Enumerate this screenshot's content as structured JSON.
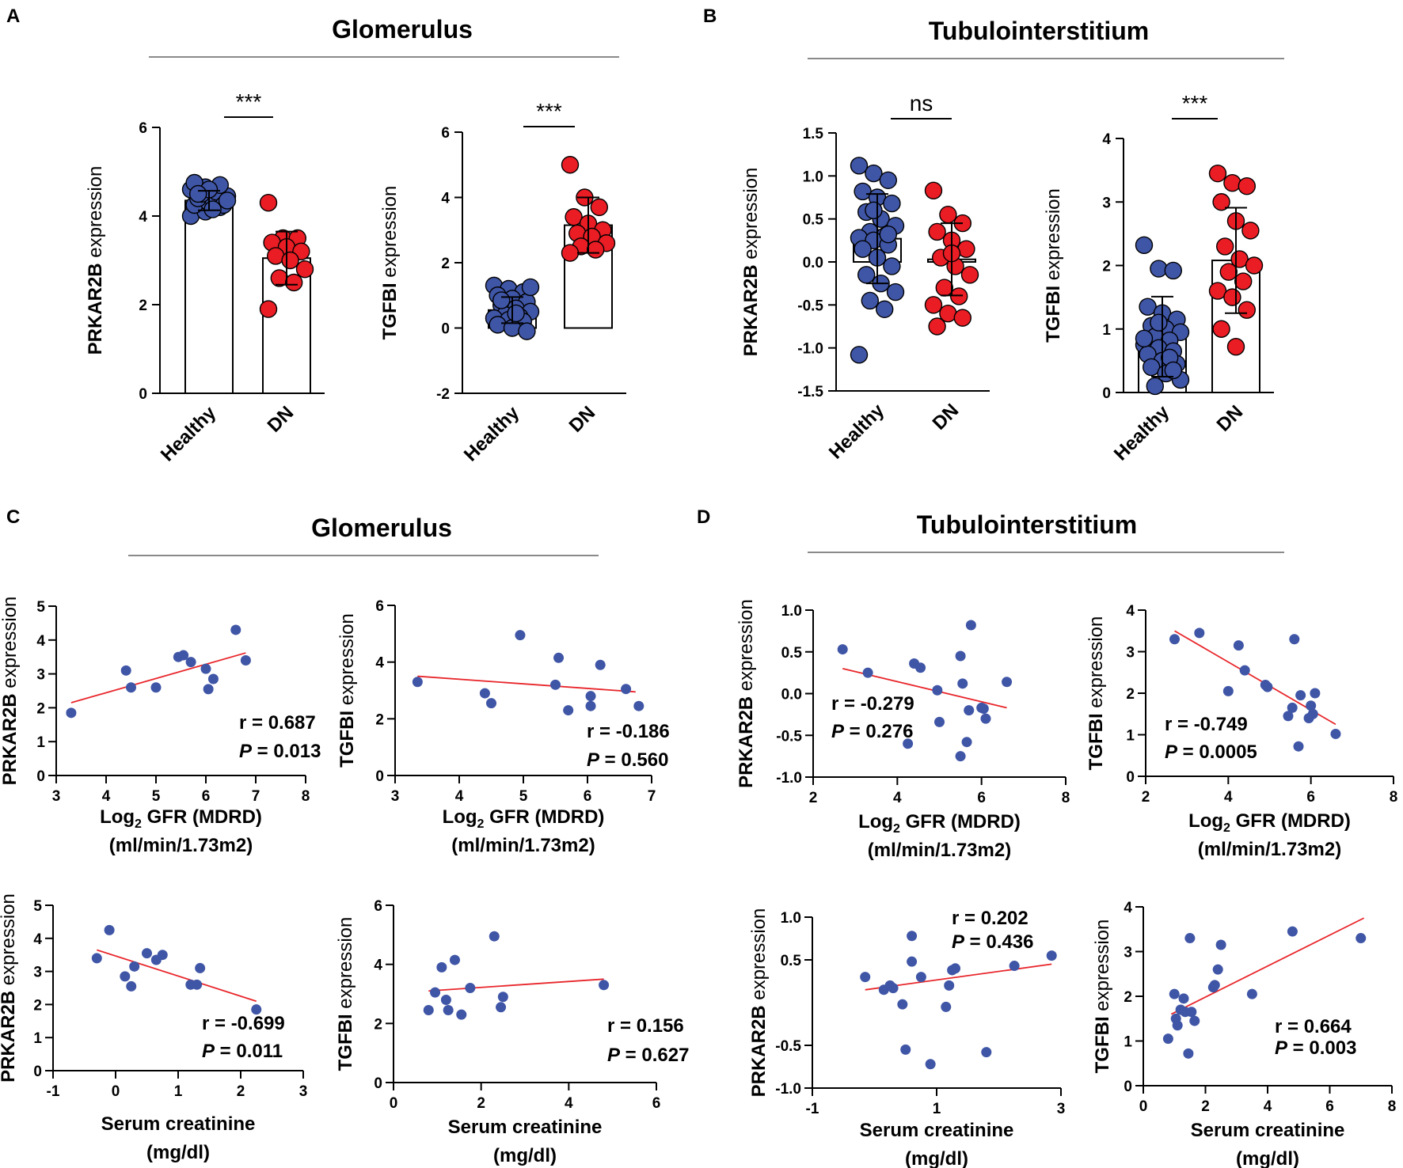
{
  "colors": {
    "healthy": "#3f55a6",
    "dn": "#ea1c24",
    "scatter": "#3f55a6",
    "regression": "#e8262b"
  },
  "sections": [
    {
      "letter": "A",
      "title": "Glomerulus"
    },
    {
      "letter": "B",
      "title": "Tubulointerstitium"
    },
    {
      "letter": "C",
      "title": "Glomerulus"
    },
    {
      "letter": "D",
      "title": "Tubulointerstitium"
    }
  ],
  "chart_data": [
    {
      "id": "A1",
      "type": "bar",
      "section": "A",
      "gene": "PRKAR2B",
      "ylabel_suffix": " expression",
      "categories": [
        "Healthy",
        "DN"
      ],
      "yticks": [
        0,
        2,
        4,
        6
      ],
      "ylim": [
        0,
        6
      ],
      "bars": [
        {
          "mean": 4.35,
          "sd": 0.22
        },
        {
          "mean": 3.05,
          "sd": 0.6
        }
      ],
      "significance": "***",
      "points": [
        [
          4.0,
          4.1,
          4.2,
          4.25,
          4.3,
          4.35,
          4.4,
          4.4,
          4.45,
          4.5,
          4.55,
          4.6,
          4.65,
          4.7,
          4.75,
          4.6,
          4.25,
          4.5,
          4.15,
          4.35
        ],
        [
          4.3,
          3.5,
          3.5,
          3.4,
          3.3,
          3.2,
          3.1,
          3.0,
          2.8,
          2.6,
          2.5,
          1.9
        ]
      ]
    },
    {
      "id": "A2",
      "type": "bar",
      "section": "A",
      "gene": "TGFBI",
      "ylabel_suffix": " expression",
      "categories": [
        "Healthy",
        "DN"
      ],
      "yticks": [
        -2,
        0,
        2,
        4,
        6
      ],
      "ylim": [
        -2,
        6
      ],
      "bars": [
        {
          "mean": 0.55,
          "sd": 0.4
        },
        {
          "mean": 3.15,
          "sd": 0.85
        }
      ],
      "significance": "***",
      "points": [
        [
          1.3,
          1.2,
          1.1,
          1.0,
          0.9,
          0.8,
          0.7,
          0.6,
          0.5,
          0.4,
          0.35,
          0.3,
          0.25,
          0.2,
          0.1,
          0.0,
          -0.1,
          0.85,
          0.45,
          1.25
        ],
        [
          5.0,
          4.0,
          3.7,
          3.4,
          3.2,
          3.0,
          2.9,
          2.8,
          2.6,
          2.5,
          2.4,
          2.3
        ]
      ]
    },
    {
      "id": "B1",
      "type": "bar",
      "section": "B",
      "gene": "PRKAR2B",
      "ylabel_suffix": " expression",
      "categories": [
        "Healthy",
        "DN"
      ],
      "yticks": [
        -1.5,
        -1.0,
        -0.5,
        0.0,
        0.5,
        1.0,
        1.5
      ],
      "ytick_labels": [
        "-1.5",
        "-1.0",
        "-0.5",
        "0.0",
        "0.5",
        "1.0",
        "1.5"
      ],
      "ylim": [
        -1.5,
        1.5
      ],
      "bars": [
        {
          "mean": 0.27,
          "sd": 0.52
        },
        {
          "mean": 0.03,
          "sd": 0.42
        }
      ],
      "significance": "ns",
      "points": [
        [
          1.12,
          1.03,
          0.95,
          0.82,
          0.75,
          0.68,
          0.58,
          0.5,
          0.42,
          0.35,
          0.3,
          0.28,
          0.25,
          0.2,
          0.15,
          0.05,
          -0.05,
          -0.15,
          -0.25,
          -0.35,
          -0.45,
          -0.55,
          -1.08,
          0.6,
          0.32
        ],
        [
          0.83,
          0.55,
          0.45,
          0.35,
          0.25,
          0.15,
          0.05,
          -0.05,
          -0.15,
          -0.3,
          -0.4,
          -0.5,
          -0.6,
          -0.65,
          -0.75,
          0.1
        ]
      ]
    },
    {
      "id": "B2",
      "type": "bar",
      "section": "B",
      "gene": "TGFBI",
      "ylabel_suffix": " expression",
      "categories": [
        "Healthy",
        "DN"
      ],
      "yticks": [
        0,
        1,
        2,
        3,
        4
      ],
      "ylim": [
        0,
        4
      ],
      "bars": [
        {
          "mean": 0.88,
          "sd": 0.63
        },
        {
          "mean": 2.08,
          "sd": 0.83
        }
      ],
      "significance": "***",
      "points": [
        [
          2.32,
          1.95,
          1.92,
          1.35,
          1.25,
          1.15,
          1.05,
          1.0,
          0.95,
          0.88,
          0.82,
          0.75,
          0.7,
          0.65,
          0.6,
          0.5,
          0.45,
          0.4,
          0.3,
          0.2,
          0.1,
          0.55,
          0.85,
          1.1,
          0.35
        ],
        [
          3.45,
          3.3,
          3.25,
          3.0,
          2.7,
          2.55,
          2.3,
          2.1,
          2.0,
          1.9,
          1.75,
          1.6,
          1.5,
          1.3,
          1.0,
          0.72
        ]
      ]
    },
    {
      "id": "C1",
      "type": "scatter",
      "section": "C",
      "gene": "PRKAR2B",
      "ylabel_suffix": " expression",
      "xlabel_pre": "Log",
      "xlabel_sub": "2",
      "xlabel_post": " GFR (MDRD)",
      "xlabel2": "(ml/min/1.73m2)",
      "xticks": [
        3,
        4,
        5,
        6,
        7,
        8
      ],
      "xlim": [
        3,
        8
      ],
      "yticks": [
        0,
        1,
        2,
        3,
        4,
        5
      ],
      "ylim": [
        0,
        5
      ],
      "x": [
        3.3,
        4.4,
        4.5,
        5.0,
        5.45,
        5.55,
        5.7,
        6.0,
        6.05,
        6.15,
        6.6,
        6.8
      ],
      "y": [
        1.85,
        3.1,
        2.6,
        2.6,
        3.5,
        3.55,
        3.35,
        3.15,
        2.55,
        2.85,
        4.3,
        3.4
      ],
      "fit": {
        "x": [
          3.3,
          6.8
        ],
        "y": [
          2.15,
          3.62
        ]
      },
      "r_text": "r = 0.687",
      "p_prefix": "P",
      "p_value": " = 0.013"
    },
    {
      "id": "C2",
      "type": "scatter",
      "section": "C",
      "gene": "TGFBI",
      "ylabel_suffix": " expression",
      "xlabel_pre": "Log",
      "xlabel_sub": "2",
      "xlabel_post": " GFR (MDRD)",
      "xlabel2": "(ml/min/1.73m2)",
      "xticks": [
        3,
        4,
        5,
        6,
        7
      ],
      "xlim": [
        3,
        7
      ],
      "yticks": [
        0,
        2,
        4,
        6
      ],
      "ylim": [
        0,
        6
      ],
      "x": [
        3.35,
        4.4,
        4.5,
        4.95,
        5.5,
        5.55,
        5.7,
        6.05,
        6.05,
        6.2,
        6.6,
        6.8
      ],
      "y": [
        3.3,
        2.9,
        2.55,
        4.95,
        3.2,
        4.15,
        2.3,
        2.45,
        2.8,
        3.9,
        3.05,
        2.45
      ],
      "fit": {
        "x": [
          3.35,
          6.75
        ],
        "y": [
          3.5,
          2.95
        ]
      },
      "r_text": "r = -0.186",
      "p_prefix": "P",
      "p_value": " = 0.560"
    },
    {
      "id": "C3",
      "type": "scatter",
      "section": "C",
      "gene": "PRKAR2B",
      "ylabel_suffix": " expression",
      "xlabel_pre": "Serum creatinine",
      "xlabel_sub": "",
      "xlabel_post": "",
      "xlabel2": "(mg/dl)",
      "xticks": [
        -1,
        0,
        1,
        2,
        3
      ],
      "xlim": [
        -1,
        3
      ],
      "yticks": [
        0,
        1,
        2,
        3,
        4,
        5
      ],
      "ylim": [
        0,
        5
      ],
      "x": [
        -0.3,
        -0.1,
        0.15,
        0.25,
        0.3,
        0.5,
        0.65,
        0.75,
        1.2,
        1.3,
        1.35,
        2.25
      ],
      "y": [
        3.4,
        4.25,
        2.85,
        2.55,
        3.15,
        3.55,
        3.35,
        3.5,
        2.6,
        2.6,
        3.1,
        1.85
      ],
      "fit": {
        "x": [
          -0.3,
          2.25
        ],
        "y": [
          3.65,
          2.1
        ]
      },
      "r_text": "r = -0.699",
      "p_prefix": "P",
      "p_value": " = 0.011"
    },
    {
      "id": "C4",
      "type": "scatter",
      "section": "C",
      "gene": "TGFBI",
      "ylabel_suffix": " expression",
      "xlabel_pre": "Serum creatinine",
      "xlabel_sub": "",
      "xlabel_post": "",
      "xlabel2": "(mg/dl)",
      "xticks": [
        0,
        2,
        4,
        6
      ],
      "xlim": [
        0,
        6
      ],
      "yticks": [
        0,
        2,
        4,
        6
      ],
      "ylim": [
        0,
        6
      ],
      "x": [
        0.8,
        0.95,
        1.1,
        1.2,
        1.25,
        1.4,
        1.55,
        1.75,
        2.3,
        2.45,
        2.5,
        4.8
      ],
      "y": [
        2.45,
        3.05,
        3.9,
        2.8,
        2.45,
        4.15,
        2.3,
        3.2,
        4.95,
        2.55,
        2.9,
        3.3
      ],
      "fit": {
        "x": [
          0.8,
          4.8
        ],
        "y": [
          3.1,
          3.5
        ]
      },
      "r_text": "r = 0.156",
      "p_prefix": "P",
      "p_value": " = 0.627"
    },
    {
      "id": "D1",
      "type": "scatter",
      "section": "D",
      "gene": "PRKAR2B",
      "ylabel_suffix": " expression",
      "xlabel_pre": "Log",
      "xlabel_sub": "2",
      "xlabel_post": " GFR (MDRD)",
      "xlabel2": "(ml/min/1.73m2)",
      "xticks": [
        2,
        4,
        6,
        8
      ],
      "xlim": [
        2,
        8
      ],
      "yticks": [
        -1.0,
        -0.5,
        0.0,
        0.5,
        1.0
      ],
      "ytick_labels": [
        "-1.0",
        "-0.5",
        "0.0",
        "0.5",
        "1.0"
      ],
      "ylim": [
        -1.0,
        1.0
      ],
      "x": [
        2.7,
        3.3,
        4.25,
        4.4,
        4.55,
        4.95,
        5.0,
        5.5,
        5.5,
        5.55,
        5.65,
        5.75,
        6.0,
        6.05,
        6.1,
        6.6,
        5.7
      ],
      "y": [
        0.53,
        0.25,
        -0.6,
        0.36,
        0.31,
        0.04,
        -0.34,
        -0.75,
        0.45,
        0.12,
        -0.58,
        0.82,
        -0.17,
        -0.18,
        -0.3,
        0.14,
        -0.2
      ],
      "fit": {
        "x": [
          2.7,
          6.6
        ],
        "y": [
          0.3,
          -0.17
        ]
      },
      "r_text": "r = -0.279",
      "p_prefix": "P",
      "p_value": " = 0.276"
    },
    {
      "id": "D2",
      "type": "scatter",
      "section": "D",
      "gene": "TGFBI",
      "ylabel_suffix": " expression",
      "xlabel_pre": "Log",
      "xlabel_sub": "2",
      "xlabel_post": " GFR (MDRD)",
      "xlabel2": "(ml/min/1.73m2)",
      "xticks": [
        2,
        4,
        6,
        8
      ],
      "xlim": [
        2,
        8
      ],
      "yticks": [
        0,
        1,
        2,
        3,
        4
      ],
      "ylim": [
        0,
        4
      ],
      "x": [
        2.7,
        3.3,
        4.0,
        4.25,
        4.4,
        4.9,
        4.95,
        5.45,
        5.55,
        5.6,
        5.7,
        5.75,
        5.95,
        6.0,
        6.05,
        6.1,
        6.6
      ],
      "y": [
        3.3,
        3.45,
        2.05,
        3.15,
        2.55,
        2.2,
        2.15,
        1.45,
        1.65,
        3.3,
        0.72,
        1.95,
        1.4,
        1.7,
        1.5,
        2.0,
        1.02
      ],
      "fit": {
        "x": [
          2.7,
          6.6
        ],
        "y": [
          3.5,
          1.25
        ]
      },
      "r_text": "r = -0.749",
      "p_prefix": "P",
      "p_value": " = 0.0005"
    },
    {
      "id": "D3",
      "type": "scatter",
      "section": "D",
      "gene": "PRKAR2B",
      "ylabel_suffix": " expression",
      "xlabel_pre": "Serum creatinine",
      "xlabel_sub": "",
      "xlabel_post": "",
      "xlabel2": "(mg/dl)",
      "xticks": [
        -1,
        1,
        3
      ],
      "xlim": [
        -1,
        3
      ],
      "yticks": [
        -1.0,
        -0.5,
        0.5,
        1.0
      ],
      "ytick_labels": [
        "-1.0",
        "-0.5",
        "0.5",
        "1.0"
      ],
      "ylim": [
        -1.0,
        1.0
      ],
      "x": [
        -0.15,
        0.15,
        0.25,
        0.3,
        0.45,
        0.6,
        0.6,
        0.75,
        0.9,
        1.15,
        1.2,
        1.25,
        1.3,
        1.8,
        2.25,
        2.85,
        0.5
      ],
      "y": [
        0.3,
        0.15,
        0.2,
        0.17,
        -0.02,
        0.78,
        0.48,
        0.3,
        -0.72,
        -0.05,
        0.2,
        0.38,
        0.4,
        -0.58,
        0.43,
        0.55,
        -0.55
      ],
      "fit": {
        "x": [
          -0.15,
          2.85
        ],
        "y": [
          0.15,
          0.45
        ]
      },
      "r_text": "r = 0.202",
      "p_prefix": "P",
      "p_value": " = 0.436"
    },
    {
      "id": "D4",
      "type": "scatter",
      "section": "D",
      "gene": "TGFBI",
      "ylabel_suffix": " expression",
      "xlabel_pre": "Serum creatinine",
      "xlabel_sub": "",
      "xlabel_post": "",
      "xlabel2": "(mg/dl)",
      "xticks": [
        0,
        2,
        4,
        6,
        8
      ],
      "xlim": [
        0,
        8
      ],
      "yticks": [
        0,
        1,
        2,
        3,
        4
      ],
      "ylim": [
        0,
        4
      ],
      "x": [
        0.8,
        1.0,
        1.05,
        1.1,
        1.2,
        1.3,
        1.35,
        1.45,
        1.5,
        1.55,
        1.65,
        2.25,
        2.3,
        2.4,
        2.5,
        3.5,
        4.8,
        7.0
      ],
      "y": [
        1.05,
        2.05,
        1.5,
        1.35,
        1.7,
        1.95,
        1.65,
        0.72,
        3.3,
        1.65,
        1.45,
        2.2,
        2.25,
        2.6,
        3.15,
        2.05,
        3.45,
        3.3
      ],
      "fit": {
        "x": [
          0.9,
          7.1
        ],
        "y": [
          1.6,
          3.75
        ]
      },
      "r_text": "r = 0.664",
      "p_prefix": "P",
      "p_value": " = 0.003"
    }
  ]
}
